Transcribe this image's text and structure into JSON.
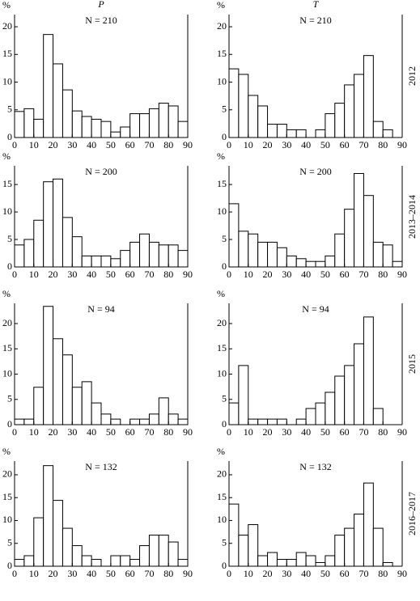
{
  "panel_columns": [
    "P",
    "T"
  ],
  "panel_rows": [
    "2012",
    "2013–2014",
    "2015",
    "2016–2017"
  ],
  "chart_data": [
    {
      "type": "histogram",
      "title": "N = 210",
      "ylabel": "%",
      "color": "#ffffff",
      "edgecolor": "#000000",
      "bins": [
        0,
        5,
        10,
        15,
        20,
        25,
        30,
        35,
        40,
        45,
        50,
        55,
        60,
        65,
        70,
        75,
        80,
        85,
        90
      ],
      "values": [
        4.7,
        5.2,
        3.3,
        18.6,
        13.3,
        8.6,
        4.8,
        3.8,
        3.3,
        2.9,
        1.0,
        1.9,
        4.3,
        4.3,
        5.2,
        6.2,
        5.7,
        2.9
      ],
      "xlim": [
        0,
        90
      ],
      "xticks": [
        0,
        10,
        20,
        30,
        40,
        50,
        60,
        70,
        80,
        90
      ],
      "ylim": [
        0,
        22.2
      ],
      "yticks": [
        0,
        5,
        10,
        15,
        20
      ]
    },
    {
      "type": "histogram",
      "title": "N = 210",
      "ylabel": "%",
      "color": "#ffffff",
      "edgecolor": "#000000",
      "bins": [
        0,
        5,
        10,
        15,
        20,
        25,
        30,
        35,
        40,
        45,
        50,
        55,
        60,
        65,
        70,
        75,
        80,
        85,
        90
      ],
      "values": [
        12.4,
        11.4,
        7.6,
        5.7,
        2.4,
        2.4,
        1.4,
        1.4,
        0,
        1.4,
        4.3,
        6.2,
        9.5,
        11.4,
        14.8,
        2.9,
        1.4,
        0
      ],
      "xlim": [
        0,
        90
      ],
      "xticks": [
        0,
        10,
        20,
        30,
        40,
        50,
        60,
        70,
        80,
        90
      ],
      "ylim": [
        0,
        22.2
      ],
      "yticks": [
        0,
        5,
        10,
        15,
        20
      ]
    },
    {
      "type": "histogram",
      "title": "N = 200",
      "ylabel": "%",
      "color": "#ffffff",
      "edgecolor": "#000000",
      "bins": [
        0,
        5,
        10,
        15,
        20,
        25,
        30,
        35,
        40,
        45,
        50,
        55,
        60,
        65,
        70,
        75,
        80,
        85,
        90
      ],
      "values": [
        4,
        5,
        8.5,
        15.5,
        16,
        9,
        5.5,
        2,
        2,
        2,
        1.5,
        3,
        4.5,
        6,
        4.5,
        4,
        4,
        3
      ],
      "xlim": [
        0,
        90
      ],
      "xticks": [
        0,
        10,
        20,
        30,
        40,
        50,
        60,
        70,
        80,
        90
      ],
      "ylim": [
        0,
        18.4
      ],
      "yticks": [
        0,
        5,
        10,
        15
      ]
    },
    {
      "type": "histogram",
      "title": "N = 200",
      "ylabel": "%",
      "color": "#ffffff",
      "edgecolor": "#000000",
      "bins": [
        0,
        5,
        10,
        15,
        20,
        25,
        30,
        35,
        40,
        45,
        50,
        55,
        60,
        65,
        70,
        75,
        80,
        85,
        90
      ],
      "values": [
        11.5,
        6.5,
        6,
        4.5,
        4.5,
        3.5,
        2,
        1.5,
        1,
        1,
        2,
        6,
        10.5,
        17,
        13,
        4.5,
        4,
        1
      ],
      "xlim": [
        0,
        90
      ],
      "xticks": [
        0,
        10,
        20,
        30,
        40,
        50,
        60,
        70,
        80,
        90
      ],
      "ylim": [
        0,
        18.4
      ],
      "yticks": [
        0,
        5,
        10,
        15
      ]
    },
    {
      "type": "histogram",
      "title": "N = 94",
      "ylabel": "%",
      "color": "#ffffff",
      "edgecolor": "#000000",
      "bins": [
        0,
        5,
        10,
        15,
        20,
        25,
        30,
        35,
        40,
        45,
        50,
        55,
        60,
        65,
        70,
        75,
        80,
        85,
        90
      ],
      "values": [
        1.1,
        1.1,
        7.4,
        23.4,
        17.0,
        13.8,
        7.4,
        8.5,
        4.3,
        2.1,
        1.1,
        0,
        1.1,
        1.1,
        2.1,
        5.3,
        2.1,
        1.1
      ],
      "xlim": [
        0,
        90
      ],
      "xticks": [
        0,
        10,
        20,
        30,
        40,
        50,
        60,
        70,
        80,
        90
      ],
      "ylim": [
        0,
        24
      ],
      "yticks": [
        0,
        5,
        10,
        15,
        20
      ]
    },
    {
      "type": "histogram",
      "title": "N = 94",
      "ylabel": "%",
      "color": "#ffffff",
      "edgecolor": "#000000",
      "bins": [
        0,
        5,
        10,
        15,
        20,
        25,
        30,
        35,
        40,
        45,
        50,
        55,
        60,
        65,
        70,
        75,
        80,
        85,
        90
      ],
      "values": [
        4.3,
        11.7,
        1.1,
        1.1,
        1.1,
        1.1,
        0,
        1.1,
        3.2,
        4.3,
        6.4,
        9.6,
        11.7,
        16.0,
        21.3,
        3.2,
        0,
        0
      ],
      "xlim": [
        0,
        90
      ],
      "xticks": [
        0,
        10,
        20,
        30,
        40,
        50,
        60,
        70,
        80,
        90
      ],
      "ylim": [
        0,
        24
      ],
      "yticks": [
        0,
        5,
        10,
        15,
        20
      ]
    },
    {
      "type": "histogram",
      "title": "N = 132",
      "ylabel": "%",
      "color": "#ffffff",
      "edgecolor": "#000000",
      "bins": [
        0,
        5,
        10,
        15,
        20,
        25,
        30,
        35,
        40,
        45,
        50,
        55,
        60,
        65,
        70,
        75,
        80,
        85,
        90
      ],
      "values": [
        1.5,
        2.3,
        10.6,
        22.0,
        14.4,
        8.3,
        4.5,
        2.3,
        1.5,
        0,
        2.3,
        2.3,
        1.5,
        4.5,
        6.8,
        6.8,
        5.3,
        1.5
      ],
      "xlim": [
        0,
        90
      ],
      "xticks": [
        0,
        10,
        20,
        30,
        40,
        50,
        60,
        70,
        80,
        90
      ],
      "ylim": [
        0,
        23
      ],
      "yticks": [
        0,
        5,
        10,
        15,
        20
      ]
    },
    {
      "type": "histogram",
      "title": "N = 132",
      "ylabel": "%",
      "color": "#ffffff",
      "edgecolor": "#000000",
      "bins": [
        0,
        5,
        10,
        15,
        20,
        25,
        30,
        35,
        40,
        45,
        50,
        55,
        60,
        65,
        70,
        75,
        80,
        85,
        90
      ],
      "values": [
        13.6,
        6.8,
        9.1,
        2.3,
        3.0,
        1.5,
        1.5,
        3.0,
        2.3,
        0.8,
        2.3,
        6.8,
        8.3,
        11.4,
        18.2,
        8.3,
        0.8,
        0
      ],
      "xlim": [
        0,
        90
      ],
      "xticks": [
        0,
        10,
        20,
        30,
        40,
        50,
        60,
        70,
        80,
        90
      ],
      "ylim": [
        0,
        23
      ],
      "yticks": [
        0,
        5,
        10,
        15,
        20
      ]
    }
  ]
}
